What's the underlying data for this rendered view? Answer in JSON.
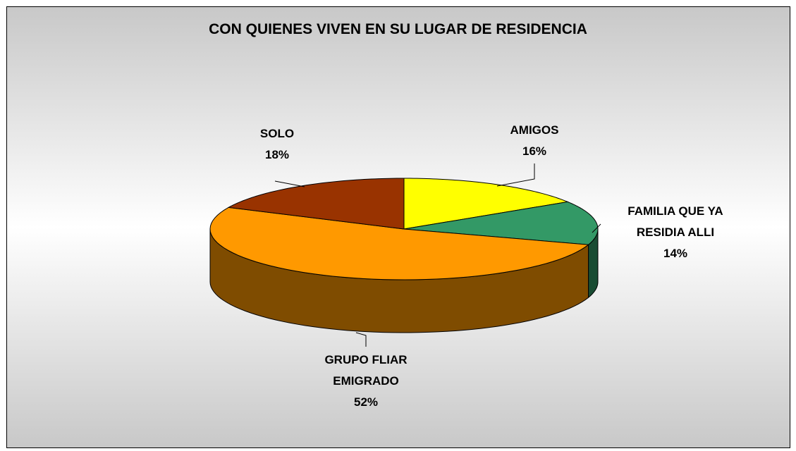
{
  "chart_data": {
    "type": "pie",
    "title": "CON QUIENES VIVEN EN SU LUGAR DE RESIDENCIA",
    "categories": [
      "AMIGOS",
      "FAMILIA QUE YA RESIDIA ALLI",
      "GRUPO FLIAR EMIGRADO",
      "SOLO"
    ],
    "values": [
      16,
      14,
      52,
      18
    ],
    "value_labels": [
      "16%",
      "14%",
      "52%",
      "18%"
    ],
    "colors": [
      "#ffff00",
      "#339966",
      "#ff9900",
      "#993300"
    ]
  }
}
